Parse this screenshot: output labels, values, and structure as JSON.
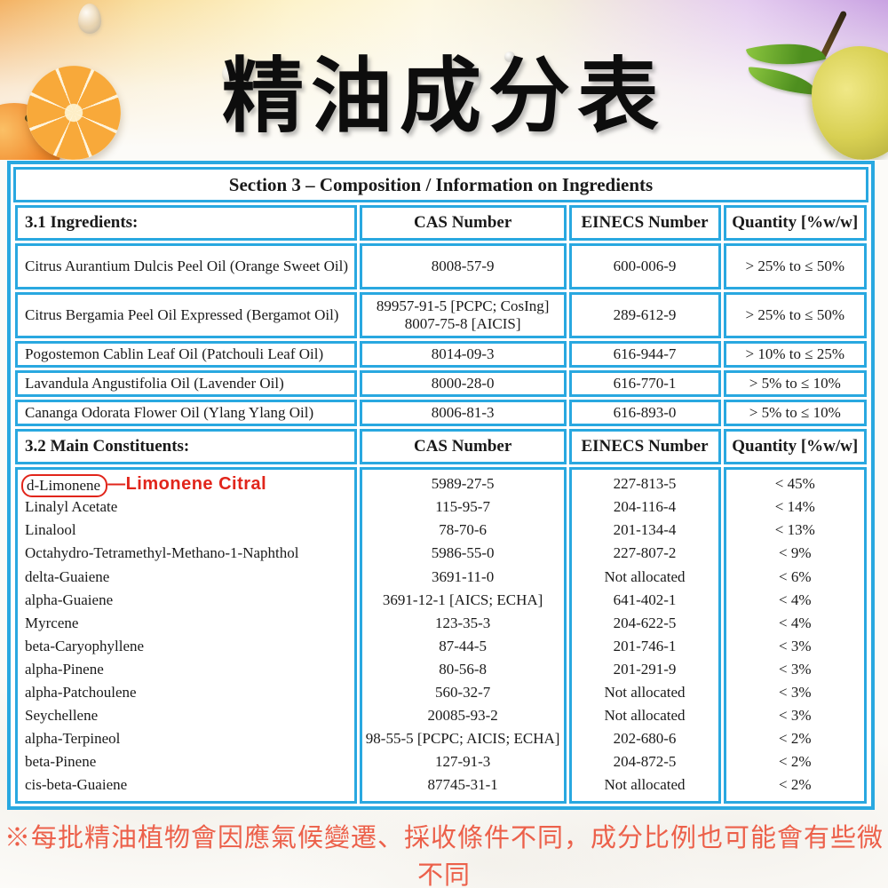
{
  "page": {
    "title": "精油成分表"
  },
  "theme": {
    "table_border_color": "#29a8e0",
    "annotation_red": "#e1251b",
    "footnote_orange": "#ec604a"
  },
  "table": {
    "section_title": "Section 3 – Composition / Information on Ingredients",
    "ingredients": {
      "header": {
        "name": "3.1 Ingredients:",
        "cas": "CAS Number",
        "einecs": "EINECS Number",
        "quantity": "Quantity [%w/w]"
      },
      "rows": [
        {
          "name": "Citrus Aurantium Dulcis Peel Oil (Orange Sweet Oil)",
          "cas_lines": [
            "8008-57-9"
          ],
          "einecs": "600-006-9",
          "quantity": "> 25% to ≤ 50%"
        },
        {
          "name": "Citrus Bergamia Peel Oil Expressed (Bergamot Oil)",
          "cas_lines": [
            "89957-91-5 [PCPC; CosIng]",
            "8007-75-8 [AICIS]"
          ],
          "einecs": "289-612-9",
          "quantity": "> 25% to ≤ 50%"
        },
        {
          "name": "Pogostemon Cablin Leaf Oil (Patchouli Leaf Oil)",
          "cas_lines": [
            "8014-09-3"
          ],
          "einecs": "616-944-7",
          "quantity": "> 10% to ≤ 25%"
        },
        {
          "name": "Lavandula Angustifolia Oil (Lavender Oil)",
          "cas_lines": [
            "8000-28-0"
          ],
          "einecs": "616-770-1",
          "quantity": "> 5% to ≤ 10%"
        },
        {
          "name": "Cananga Odorata Flower Oil (Ylang Ylang Oil)",
          "cas_lines": [
            "8006-81-3"
          ],
          "einecs": "616-893-0",
          "quantity": "> 5% to ≤ 10%"
        }
      ]
    },
    "constituents": {
      "header": {
        "name": "3.2 Main Constituents:",
        "cas": "CAS Number",
        "einecs": "EINECS Number",
        "quantity": "Quantity [%w/w]"
      },
      "annotation": "—Limonene Citral",
      "rows": [
        {
          "name": "d-Limonene",
          "cas": "5989-27-5",
          "einecs": "227-813-5",
          "quantity": "< 45%"
        },
        {
          "name": "Linalyl Acetate",
          "cas": "115-95-7",
          "einecs": "204-116-4",
          "quantity": "< 14%"
        },
        {
          "name": "Linalool",
          "cas": "78-70-6",
          "einecs": "201-134-4",
          "quantity": "< 13%"
        },
        {
          "name": "Octahydro-Tetramethyl-Methano-1-Naphthol",
          "cas": "5986-55-0",
          "einecs": "227-807-2",
          "quantity": "< 9%"
        },
        {
          "name": "delta-Guaiene",
          "cas": "3691-11-0",
          "einecs": "Not allocated",
          "quantity": "< 6%"
        },
        {
          "name": "alpha-Guaiene",
          "cas": "3691-12-1 [AICS; ECHA]",
          "einecs": "641-402-1",
          "quantity": "< 4%"
        },
        {
          "name": "Myrcene",
          "cas": "123-35-3",
          "einecs": "204-622-5",
          "quantity": "< 4%"
        },
        {
          "name": "beta-Caryophyllene",
          "cas": "87-44-5",
          "einecs": "201-746-1",
          "quantity": "< 3%"
        },
        {
          "name": "alpha-Pinene",
          "cas": "80-56-8",
          "einecs": "201-291-9",
          "quantity": "< 3%"
        },
        {
          "name": "alpha-Patchoulene",
          "cas": "560-32-7",
          "einecs": "Not allocated",
          "quantity": "< 3%"
        },
        {
          "name": "Seychellene",
          "cas": "20085-93-2",
          "einecs": "Not allocated",
          "quantity": "< 3%"
        },
        {
          "name": "alpha-Terpineol",
          "cas": "98-55-5 [PCPC; AICIS; ECHA]",
          "einecs": "202-680-6",
          "quantity": "< 2%"
        },
        {
          "name": "beta-Pinene",
          "cas": "127-91-3",
          "einecs": "204-872-5",
          "quantity": "< 2%"
        },
        {
          "name": "cis-beta-Guaiene",
          "cas": "87745-31-1",
          "einecs": "Not allocated",
          "quantity": "< 2%"
        }
      ]
    }
  },
  "footnote": {
    "text": "※每批精油植物會因應氣候變遷、採收條件不同，成分比例也可能會有些微不同"
  }
}
